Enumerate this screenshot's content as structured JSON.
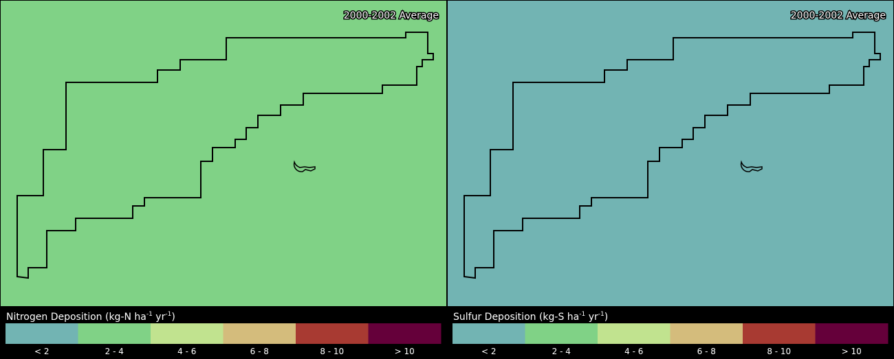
{
  "panels": [
    {
      "title": "2000-2002 Average",
      "map_color": "#80d286",
      "legend_title": {
        "text": "Nitrogen Deposition (kg-N ha",
        "sup1": "-1",
        "mid": " yr",
        "sup2": "-1",
        "end": ")"
      },
      "legend": [
        {
          "label": "< 2",
          "color": "#72b4b3"
        },
        {
          "label": "2 - 4",
          "color": "#80d286"
        },
        {
          "label": "4 - 6",
          "color": "#c1e38f"
        },
        {
          "label": "6 - 8",
          "color": "#d4bc7c"
        },
        {
          "label": "8 - 10",
          "color": "#a83a32"
        },
        {
          "label": "> 10",
          "color": "#65003a"
        }
      ]
    },
    {
      "title": "2000-2002 Average",
      "map_color": "#72b4b3",
      "legend_title": {
        "text": "Sulfur Deposition (kg-S ha",
        "sup1": "-1",
        "mid": " yr",
        "sup2": "-1",
        "end": ")"
      },
      "legend": [
        {
          "label": "< 2",
          "color": "#72b4b3"
        },
        {
          "label": "2 - 4",
          "color": "#80d286"
        },
        {
          "label": "4 - 6",
          "color": "#c1e38f"
        },
        {
          "label": "6 - 8",
          "color": "#d4bc7c"
        },
        {
          "label": "8 - 10",
          "color": "#a83a32"
        },
        {
          "label": "> 10",
          "color": "#65003a"
        }
      ]
    }
  ]
}
